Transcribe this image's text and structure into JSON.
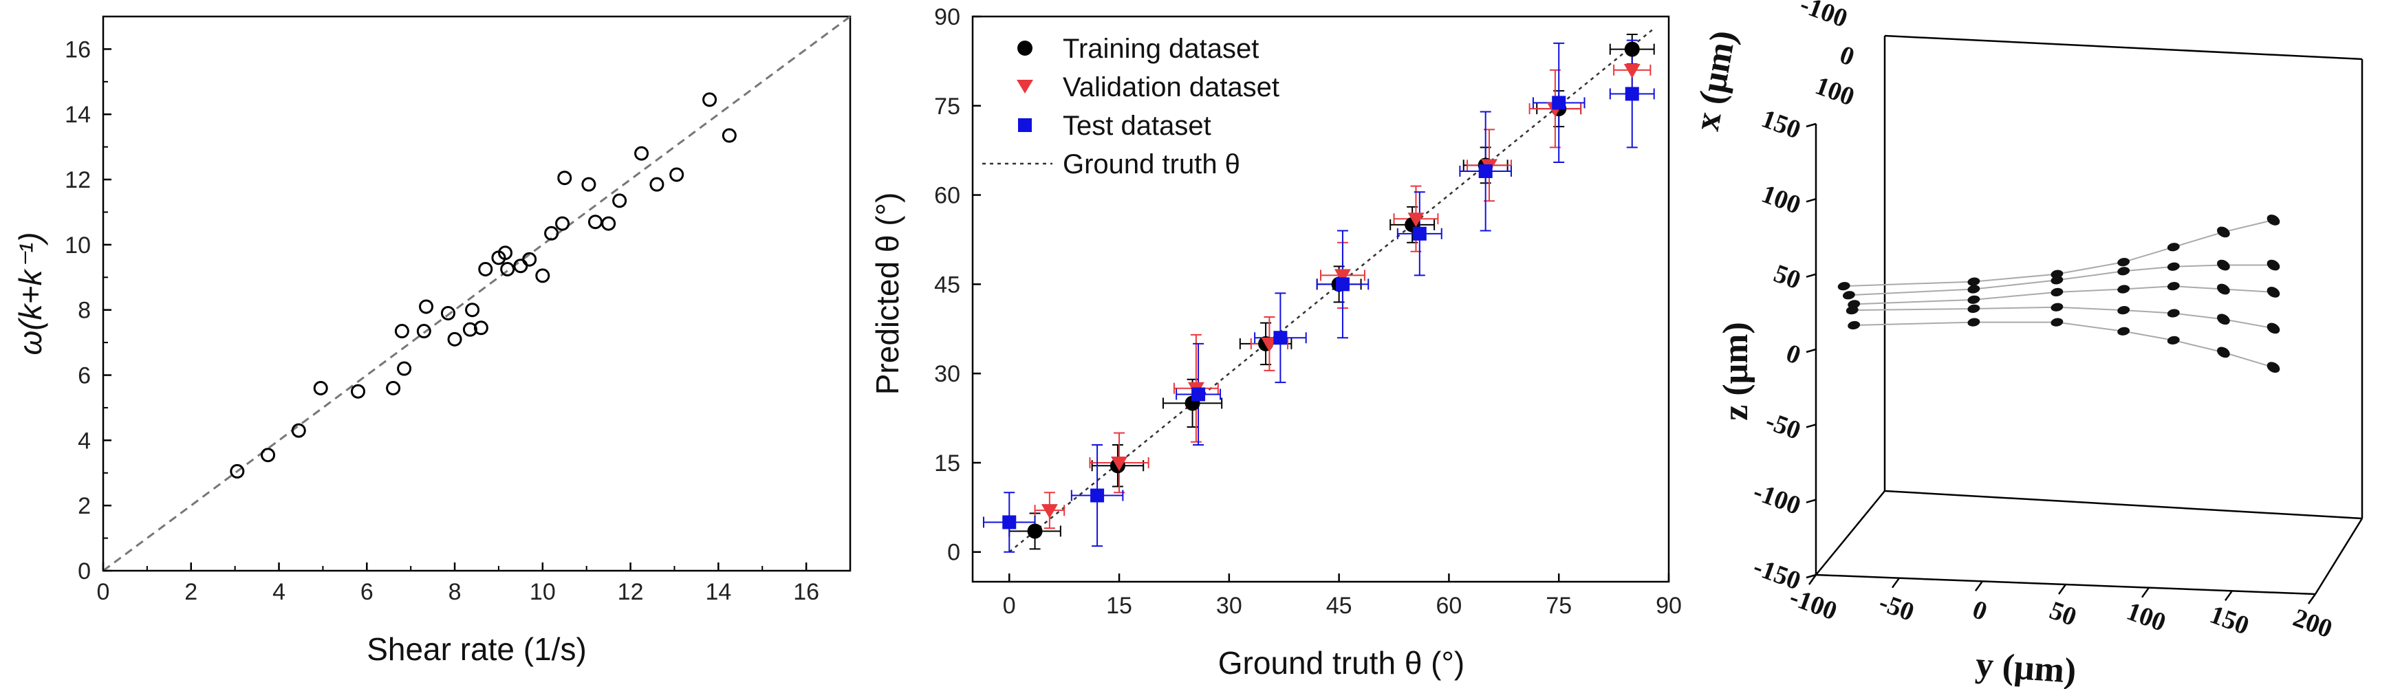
{
  "chart_data": [
    {
      "type": "scatter",
      "xlabel": "Shear rate (1/s)",
      "ylabel": "ω(k+k⁻¹)",
      "xlim": [
        0,
        17
      ],
      "ylim": [
        0,
        17
      ],
      "xticks": [
        "0",
        "2",
        "4",
        "6",
        "8",
        "10",
        "12",
        "14",
        "16"
      ],
      "yticks": [
        "0",
        "2",
        "4",
        "6",
        "8",
        "10",
        "12",
        "14",
        "16"
      ],
      "marker": "open-circle",
      "reference_line": "y = x (dashed)",
      "x": [
        3.05,
        3.75,
        4.45,
        4.95,
        5.8,
        6.6,
        6.85,
        6.8,
        7.3,
        7.35,
        7.85,
        8.0,
        8.35,
        8.4,
        8.6,
        8.7,
        9.0,
        9.15,
        9.2,
        9.5,
        9.7,
        10.0,
        10.2,
        10.45,
        10.5,
        11.05,
        11.2,
        11.5,
        11.75,
        12.25,
        12.6,
        13.05,
        13.8,
        14.25
      ],
      "y": [
        3.05,
        3.55,
        4.3,
        5.6,
        5.5,
        5.6,
        6.2,
        7.35,
        7.35,
        8.1,
        7.9,
        7.1,
        7.4,
        8.0,
        7.45,
        9.25,
        9.6,
        9.75,
        9.25,
        9.35,
        9.55,
        9.05,
        10.35,
        10.65,
        12.05,
        11.85,
        10.7,
        10.65,
        11.35,
        12.8,
        11.85,
        12.15,
        14.45,
        13.35
      ]
    },
    {
      "type": "scatter",
      "xlabel": "Ground truth θ (°)",
      "ylabel": "Predicted θ (°)",
      "xlim": [
        -5,
        90
      ],
      "ylim": [
        -5,
        90
      ],
      "xticks": [
        "0",
        "15",
        "30",
        "45",
        "60",
        "75",
        "90"
      ],
      "yticks": [
        "0",
        "15",
        "30",
        "45",
        "60",
        "75",
        "90"
      ],
      "legend_position": "top-left",
      "reference_line": {
        "name": "Ground truth θ",
        "style": "dotted"
      },
      "series": [
        {
          "name": "Training dataset",
          "color": "#000000",
          "marker": "circle",
          "points": [
            {
              "x": 3.5,
              "y": 3.5,
              "xerr": 3.5,
              "yerr": 3
            },
            {
              "x": 14.8,
              "y": 14.5,
              "xerr": 3.5,
              "yerr": 3.5
            },
            {
              "x": 25,
              "y": 25,
              "xerr": 4,
              "yerr": 4
            },
            {
              "x": 35,
              "y": 35,
              "xerr": 3.5,
              "yerr": 3.5
            },
            {
              "x": 45,
              "y": 45,
              "xerr": 3,
              "yerr": 3
            },
            {
              "x": 55,
              "y": 55,
              "xerr": 3,
              "yerr": 3
            },
            {
              "x": 65,
              "y": 65,
              "xerr": 3,
              "yerr": 3
            },
            {
              "x": 75,
              "y": 74.5,
              "xerr": 3,
              "yerr": 3
            },
            {
              "x": 85,
              "y": 84.5,
              "xerr": 3,
              "yerr": 2.5
            }
          ]
        },
        {
          "name": "Validation dataset",
          "color": "#e8383d",
          "marker": "triangle-down",
          "points": [
            {
              "x": 5.5,
              "y": 7,
              "xerr": 2,
              "yerr": 3
            },
            {
              "x": 15,
              "y": 15,
              "xerr": 4,
              "yerr": 5
            },
            {
              "x": 25.5,
              "y": 27.5,
              "xerr": 3,
              "yerr": 9
            },
            {
              "x": 35.5,
              "y": 35,
              "xerr": 2.5,
              "yerr": 4.5
            },
            {
              "x": 45.5,
              "y": 46.5,
              "xerr": 3,
              "yerr": 5.5
            },
            {
              "x": 55.5,
              "y": 56,
              "xerr": 3,
              "yerr": 5.5
            },
            {
              "x": 65.5,
              "y": 65,
              "xerr": 3,
              "yerr": 6
            },
            {
              "x": 74.5,
              "y": 74.5,
              "xerr": 3.5,
              "yerr": 6.5
            },
            {
              "x": 85,
              "y": 81,
              "xerr": 2.5,
              "yerr": 3
            }
          ]
        },
        {
          "name": "Test dataset",
          "color": "#1010e0",
          "marker": "square",
          "points": [
            {
              "x": 0,
              "y": 5,
              "xerr": 3.5,
              "yerr": 5
            },
            {
              "x": 12,
              "y": 9.5,
              "xerr": 3.5,
              "yerr": 8.5
            },
            {
              "x": 25.8,
              "y": 26.5,
              "xerr": 3,
              "yerr": 8.5
            },
            {
              "x": 37,
              "y": 36,
              "xerr": 3.5,
              "yerr": 7.5
            },
            {
              "x": 45.5,
              "y": 45,
              "xerr": 3.5,
              "yerr": 9
            },
            {
              "x": 56,
              "y": 53.5,
              "xerr": 3,
              "yerr": 7
            },
            {
              "x": 65,
              "y": 64,
              "xerr": 3.5,
              "yerr": 10
            },
            {
              "x": 75,
              "y": 75.5,
              "xerr": 3.5,
              "yerr": 10
            },
            {
              "x": 85,
              "y": 77,
              "xerr": 3,
              "yerr": 9
            }
          ]
        }
      ]
    },
    {
      "type": "scatter",
      "xlabel": "y (μm)",
      "ylabel": "z (μm)",
      "zlabel": "x (μm)",
      "y_ticks": [
        "-100",
        "-50",
        "0",
        "50",
        "100",
        "150",
        "200"
      ],
      "z_ticks": [
        "-150",
        "-100",
        "-50",
        "0",
        "50",
        "100",
        "150"
      ],
      "x_ticks": [
        "-100",
        "0",
        "100"
      ],
      "projection": "3d",
      "marker": "black ellipsoid",
      "trajectories": [
        {
          "y": [
            -108,
            -30,
            20,
            60,
            90,
            120,
            150
          ],
          "z": [
            42,
            45,
            50,
            58,
            68,
            78,
            86
          ]
        },
        {
          "y": [
            -105,
            -30,
            20,
            60,
            90,
            120,
            150
          ],
          "z": [
            36,
            40,
            46,
            52,
            55,
            56,
            56
          ]
        },
        {
          "y": [
            -102,
            -30,
            20,
            60,
            90,
            120,
            150
          ],
          "z": [
            30,
            33,
            38,
            40,
            42,
            40,
            38
          ]
        },
        {
          "y": [
            -103,
            -30,
            20,
            60,
            90,
            120,
            150
          ],
          "z": [
            26,
            27,
            28,
            26,
            24,
            20,
            14
          ]
        },
        {
          "y": [
            -102,
            -30,
            20,
            60,
            90,
            120,
            150
          ],
          "z": [
            16,
            18,
            18,
            12,
            6,
            -2,
            -12
          ]
        }
      ]
    }
  ]
}
